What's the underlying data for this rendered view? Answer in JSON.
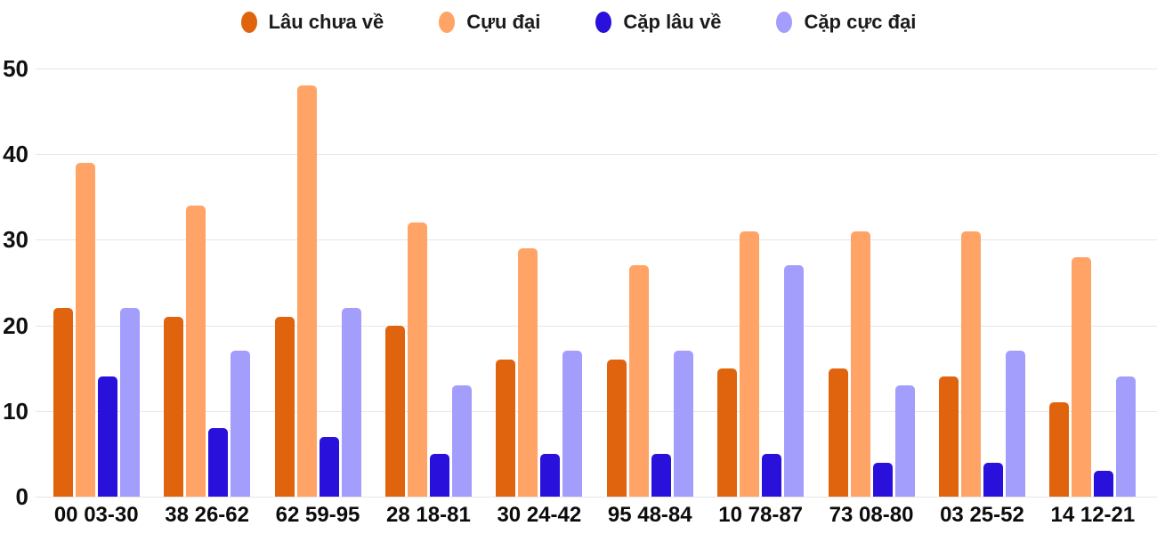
{
  "page": {
    "background": "#ffffff"
  },
  "chart_data": {
    "type": "bar",
    "title": "",
    "categories": [
      "00 03-30",
      "38 26-62",
      "62 59-95",
      "28 18-81",
      "30 24-42",
      "95 48-84",
      "10 78-87",
      "73 08-80",
      "03 25-52",
      "14 12-21"
    ],
    "series": [
      {
        "name": "Lâu chưa về",
        "color": "#e0640e",
        "values": [
          22,
          21,
          21,
          20,
          16,
          16,
          15,
          15,
          14,
          11
        ]
      },
      {
        "name": "Cựu đại",
        "color": "#ffa366",
        "values": [
          39,
          34,
          48,
          32,
          29,
          27,
          31,
          31,
          31,
          28
        ]
      },
      {
        "name": "Cặp lâu về",
        "color": "#2a10db",
        "values": [
          14,
          8,
          7,
          5,
          5,
          5,
          5,
          4,
          4,
          3
        ]
      },
      {
        "name": "Cặp cực đại",
        "color": "#a39dfb",
        "values": [
          22,
          17,
          22,
          13,
          17,
          17,
          27,
          13,
          17,
          14
        ]
      }
    ],
    "y_ticks": [
      0,
      10,
      20,
      30,
      40,
      50
    ],
    "ylim": [
      0,
      50
    ],
    "grid": true,
    "legend_position": "top",
    "text_color": "#1b1b1b",
    "grid_color": "#e6e6e6"
  }
}
